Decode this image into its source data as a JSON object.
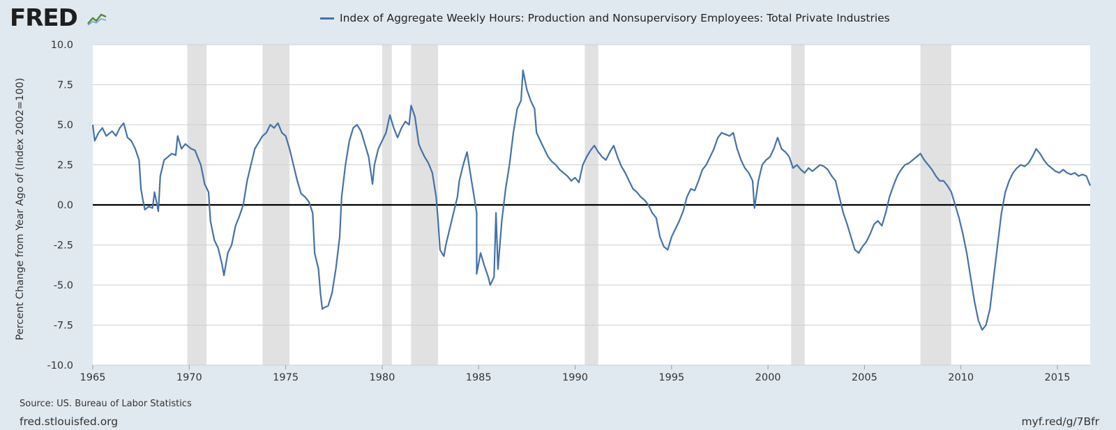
{
  "brand": {
    "logo_text": "FRED"
  },
  "chart_data": {
    "type": "line",
    "title": "Index of Aggregate Weekly Hours: Production and Nonsupervisory Employees: Total Private Industries",
    "xlabel": "",
    "ylabel": "Percent Change from Year Ago of (Index 2002=100)",
    "xlim": [
      1965.0,
      2016.7
    ],
    "ylim": [
      -10,
      10
    ],
    "y_ticks": [
      "10.0",
      "7.5",
      "5.0",
      "2.5",
      "0.0",
      "-2.5",
      "-5.0",
      "-7.5",
      "-10.0"
    ],
    "x_ticks": [
      "1965",
      "1970",
      "1975",
      "1980",
      "1985",
      "1990",
      "1995",
      "2000",
      "2005",
      "2010",
      "2015"
    ],
    "grid": true,
    "legend": "top-center",
    "colors": {
      "line": "#4472a8",
      "recession": "#e1e1e1",
      "zero_line": "#000000"
    },
    "recessions": [
      [
        1969.9,
        1970.9
      ],
      [
        1973.8,
        1975.2
      ],
      [
        1980.0,
        1980.5
      ],
      [
        1981.5,
        1982.9
      ],
      [
        1990.5,
        1991.2
      ],
      [
        2001.2,
        2001.9
      ],
      [
        2007.9,
        2009.5
      ]
    ],
    "series": [
      {
        "name": "Index of Aggregate Weekly Hours: Production and Nonsupervisory Employees: Total Private Industries",
        "points": [
          [
            1965.0,
            5.0
          ],
          [
            1965.1,
            4.0
          ],
          [
            1965.3,
            4.5
          ],
          [
            1965.5,
            4.8
          ],
          [
            1965.7,
            4.3
          ],
          [
            1966.0,
            4.6
          ],
          [
            1966.2,
            4.3
          ],
          [
            1966.4,
            4.8
          ],
          [
            1966.6,
            5.1
          ],
          [
            1966.8,
            4.2
          ],
          [
            1967.0,
            4.0
          ],
          [
            1967.2,
            3.5
          ],
          [
            1967.4,
            2.8
          ],
          [
            1967.5,
            1.0
          ],
          [
            1967.6,
            0.3
          ],
          [
            1967.7,
            -0.3
          ],
          [
            1967.9,
            -0.1
          ],
          [
            1968.1,
            -0.2
          ],
          [
            1968.2,
            0.8
          ],
          [
            1968.3,
            0.2
          ],
          [
            1968.4,
            -0.4
          ],
          [
            1968.5,
            1.8
          ],
          [
            1968.7,
            2.8
          ],
          [
            1968.9,
            3.0
          ],
          [
            1969.1,
            3.2
          ],
          [
            1969.3,
            3.1
          ],
          [
            1969.4,
            4.3
          ],
          [
            1969.6,
            3.5
          ],
          [
            1969.8,
            3.8
          ],
          [
            1970.1,
            3.5
          ],
          [
            1970.3,
            3.4
          ],
          [
            1970.5,
            2.8
          ],
          [
            1970.6,
            2.5
          ],
          [
            1970.8,
            1.3
          ],
          [
            1971.0,
            0.8
          ],
          [
            1971.1,
            -1.0
          ],
          [
            1971.3,
            -2.2
          ],
          [
            1971.5,
            -2.7
          ],
          [
            1971.7,
            -3.7
          ],
          [
            1971.8,
            -4.4
          ],
          [
            1972.0,
            -3.0
          ],
          [
            1972.2,
            -2.5
          ],
          [
            1972.4,
            -1.3
          ],
          [
            1972.6,
            -0.7
          ],
          [
            1972.8,
            0.0
          ],
          [
            1973.0,
            1.5
          ],
          [
            1973.2,
            2.5
          ],
          [
            1973.4,
            3.5
          ],
          [
            1973.6,
            3.9
          ],
          [
            1973.8,
            4.3
          ],
          [
            1974.0,
            4.5
          ],
          [
            1974.2,
            5.0
          ],
          [
            1974.4,
            4.8
          ],
          [
            1974.6,
            5.1
          ],
          [
            1974.8,
            4.5
          ],
          [
            1975.0,
            4.3
          ],
          [
            1975.2,
            3.5
          ],
          [
            1975.4,
            2.5
          ],
          [
            1975.6,
            1.5
          ],
          [
            1975.8,
            0.7
          ],
          [
            1976.0,
            0.5
          ],
          [
            1976.2,
            0.2
          ],
          [
            1976.4,
            -0.5
          ],
          [
            1976.5,
            -3.0
          ],
          [
            1976.7,
            -4.0
          ],
          [
            1976.8,
            -5.5
          ],
          [
            1976.9,
            -6.5
          ],
          [
            1977.0,
            -6.4
          ],
          [
            1977.2,
            -6.3
          ],
          [
            1977.4,
            -5.5
          ],
          [
            1977.6,
            -4.0
          ],
          [
            1977.8,
            -2.0
          ],
          [
            1977.9,
            0.5
          ],
          [
            1978.1,
            2.5
          ],
          [
            1978.3,
            4.0
          ],
          [
            1978.5,
            4.8
          ],
          [
            1978.7,
            5.0
          ],
          [
            1978.9,
            4.6
          ],
          [
            1979.1,
            3.8
          ],
          [
            1979.3,
            3.0
          ],
          [
            1979.5,
            1.3
          ],
          [
            1979.6,
            2.5
          ],
          [
            1979.8,
            3.5
          ],
          [
            1980.0,
            4.0
          ],
          [
            1980.2,
            4.5
          ],
          [
            1980.4,
            5.6
          ],
          [
            1980.6,
            4.8
          ],
          [
            1980.8,
            4.2
          ],
          [
            1981.0,
            4.8
          ],
          [
            1981.2,
            5.2
          ],
          [
            1981.4,
            5.0
          ],
          [
            1981.5,
            6.2
          ],
          [
            1981.7,
            5.5
          ],
          [
            1981.9,
            3.8
          ],
          [
            1982.0,
            3.5
          ],
          [
            1982.2,
            3.0
          ],
          [
            1982.4,
            2.6
          ],
          [
            1982.6,
            2.0
          ],
          [
            1982.8,
            0.5
          ],
          [
            1982.9,
            -1.0
          ],
          [
            1983.0,
            -2.8
          ],
          [
            1983.2,
            -3.2
          ],
          [
            1983.3,
            -2.5
          ],
          [
            1983.5,
            -1.5
          ],
          [
            1983.7,
            -0.5
          ],
          [
            1983.9,
            0.5
          ],
          [
            1984.0,
            1.5
          ],
          [
            1984.2,
            2.5
          ],
          [
            1984.4,
            3.3
          ],
          [
            1984.5,
            2.5
          ],
          [
            1984.7,
            1.0
          ],
          [
            1984.9,
            -0.5
          ],
          [
            1984.9,
            -4.3
          ],
          [
            1985.1,
            -3.0
          ],
          [
            1985.3,
            -3.8
          ],
          [
            1985.5,
            -4.5
          ],
          [
            1985.6,
            -5.0
          ],
          [
            1985.8,
            -4.5
          ],
          [
            1985.9,
            -0.5
          ],
          [
            1986.0,
            -4.0
          ],
          [
            1986.2,
            -1.0
          ],
          [
            1986.4,
            1.0
          ],
          [
            1986.6,
            2.5
          ],
          [
            1986.8,
            4.5
          ],
          [
            1987.0,
            6.0
          ],
          [
            1987.2,
            6.5
          ],
          [
            1987.3,
            8.4
          ],
          [
            1987.5,
            7.2
          ],
          [
            1987.7,
            6.5
          ],
          [
            1987.9,
            6.0
          ],
          [
            1988.0,
            4.5
          ],
          [
            1988.2,
            4.0
          ],
          [
            1988.4,
            3.5
          ],
          [
            1988.6,
            3.0
          ],
          [
            1988.8,
            2.7
          ],
          [
            1989.0,
            2.5
          ],
          [
            1989.2,
            2.2
          ],
          [
            1989.4,
            2.0
          ],
          [
            1989.6,
            1.8
          ],
          [
            1989.8,
            1.5
          ],
          [
            1990.0,
            1.7
          ],
          [
            1990.2,
            1.4
          ],
          [
            1990.4,
            2.5
          ],
          [
            1990.6,
            3.0
          ],
          [
            1990.8,
            3.4
          ],
          [
            1991.0,
            3.7
          ],
          [
            1991.2,
            3.3
          ],
          [
            1991.4,
            3.0
          ],
          [
            1991.6,
            2.8
          ],
          [
            1991.8,
            3.3
          ],
          [
            1992.0,
            3.7
          ],
          [
            1992.2,
            3.0
          ],
          [
            1992.4,
            2.4
          ],
          [
            1992.6,
            2.0
          ],
          [
            1992.8,
            1.5
          ],
          [
            1993.0,
            1.0
          ],
          [
            1993.2,
            0.8
          ],
          [
            1993.4,
            0.5
          ],
          [
            1993.6,
            0.3
          ],
          [
            1993.8,
            0.0
          ],
          [
            1994.0,
            -0.5
          ],
          [
            1994.2,
            -0.8
          ],
          [
            1994.4,
            -2.0
          ],
          [
            1994.6,
            -2.6
          ],
          [
            1994.8,
            -2.8
          ],
          [
            1995.0,
            -2.0
          ],
          [
            1995.2,
            -1.5
          ],
          [
            1995.4,
            -1.0
          ],
          [
            1995.6,
            -0.4
          ],
          [
            1995.8,
            0.5
          ],
          [
            1996.0,
            1.0
          ],
          [
            1996.2,
            0.9
          ],
          [
            1996.4,
            1.5
          ],
          [
            1996.6,
            2.2
          ],
          [
            1996.8,
            2.5
          ],
          [
            1997.0,
            3.0
          ],
          [
            1997.2,
            3.5
          ],
          [
            1997.4,
            4.2
          ],
          [
            1997.6,
            4.5
          ],
          [
            1997.8,
            4.4
          ],
          [
            1998.0,
            4.3
          ],
          [
            1998.2,
            4.5
          ],
          [
            1998.4,
            3.5
          ],
          [
            1998.6,
            2.8
          ],
          [
            1998.8,
            2.3
          ],
          [
            1999.0,
            2.0
          ],
          [
            1999.2,
            1.5
          ],
          [
            1999.3,
            -0.2
          ],
          [
            1999.5,
            1.5
          ],
          [
            1999.7,
            2.5
          ],
          [
            1999.9,
            2.8
          ],
          [
            2000.1,
            3.0
          ],
          [
            2000.3,
            3.5
          ],
          [
            2000.5,
            4.2
          ],
          [
            2000.7,
            3.5
          ],
          [
            2000.9,
            3.3
          ],
          [
            2001.1,
            3.0
          ],
          [
            2001.3,
            2.3
          ],
          [
            2001.5,
            2.5
          ],
          [
            2001.7,
            2.2
          ],
          [
            2001.9,
            2.0
          ],
          [
            2002.1,
            2.3
          ],
          [
            2002.3,
            2.1
          ],
          [
            2002.5,
            2.3
          ],
          [
            2002.7,
            2.5
          ],
          [
            2002.9,
            2.4
          ],
          [
            2003.1,
            2.2
          ],
          [
            2003.3,
            1.8
          ],
          [
            2003.5,
            1.5
          ],
          [
            2003.7,
            0.5
          ],
          [
            2003.9,
            -0.5
          ],
          [
            2004.1,
            -1.2
          ],
          [
            2004.3,
            -2.0
          ],
          [
            2004.5,
            -2.8
          ],
          [
            2004.7,
            -3.0
          ],
          [
            2004.9,
            -2.6
          ],
          [
            2005.1,
            -2.3
          ],
          [
            2005.3,
            -1.8
          ],
          [
            2005.5,
            -1.2
          ],
          [
            2005.7,
            -1.0
          ],
          [
            2005.9,
            -1.3
          ],
          [
            2006.1,
            -0.5
          ],
          [
            2006.3,
            0.5
          ],
          [
            2006.5,
            1.2
          ],
          [
            2006.7,
            1.8
          ],
          [
            2006.9,
            2.2
          ],
          [
            2007.1,
            2.5
          ],
          [
            2007.3,
            2.6
          ],
          [
            2007.5,
            2.8
          ],
          [
            2007.7,
            3.0
          ],
          [
            2007.9,
            3.2
          ],
          [
            2008.1,
            2.8
          ],
          [
            2008.3,
            2.5
          ],
          [
            2008.5,
            2.2
          ],
          [
            2008.7,
            1.8
          ],
          [
            2008.9,
            1.5
          ],
          [
            2009.1,
            1.5
          ],
          [
            2009.3,
            1.2
          ],
          [
            2009.5,
            0.8
          ],
          [
            2009.7,
            0.0
          ],
          [
            2009.9,
            -0.8
          ],
          [
            2010.1,
            -1.8
          ],
          [
            2010.3,
            -3.0
          ],
          [
            2010.5,
            -4.5
          ],
          [
            2010.7,
            -6.0
          ],
          [
            2010.9,
            -7.2
          ],
          [
            2011.1,
            -7.8
          ],
          [
            2011.3,
            -7.5
          ],
          [
            2011.5,
            -6.5
          ],
          [
            2011.7,
            -4.5
          ],
          [
            2011.9,
            -2.5
          ],
          [
            2012.1,
            -0.5
          ],
          [
            2012.3,
            0.8
          ],
          [
            2012.5,
            1.5
          ],
          [
            2012.7,
            2.0
          ],
          [
            2012.9,
            2.3
          ],
          [
            2013.1,
            2.5
          ],
          [
            2013.3,
            2.4
          ],
          [
            2013.5,
            2.6
          ],
          [
            2013.7,
            3.0
          ],
          [
            2013.9,
            3.5
          ],
          [
            2014.1,
            3.2
          ],
          [
            2014.3,
            2.8
          ],
          [
            2014.5,
            2.5
          ],
          [
            2014.7,
            2.3
          ],
          [
            2014.9,
            2.1
          ],
          [
            2015.1,
            2.0
          ],
          [
            2015.3,
            2.2
          ],
          [
            2015.5,
            2.0
          ],
          [
            2015.7,
            1.9
          ],
          [
            2015.9,
            2.0
          ],
          [
            2016.1,
            1.8
          ],
          [
            2016.3,
            1.9
          ],
          [
            2016.5,
            1.8
          ],
          [
            2016.7,
            1.2
          ]
        ]
      }
    ]
  },
  "footer": {
    "source": "Source: US. Bureau of Labor Statistics",
    "site": "fred.stlouisfed.org",
    "short_url": "myf.red/g/7Bfr"
  }
}
